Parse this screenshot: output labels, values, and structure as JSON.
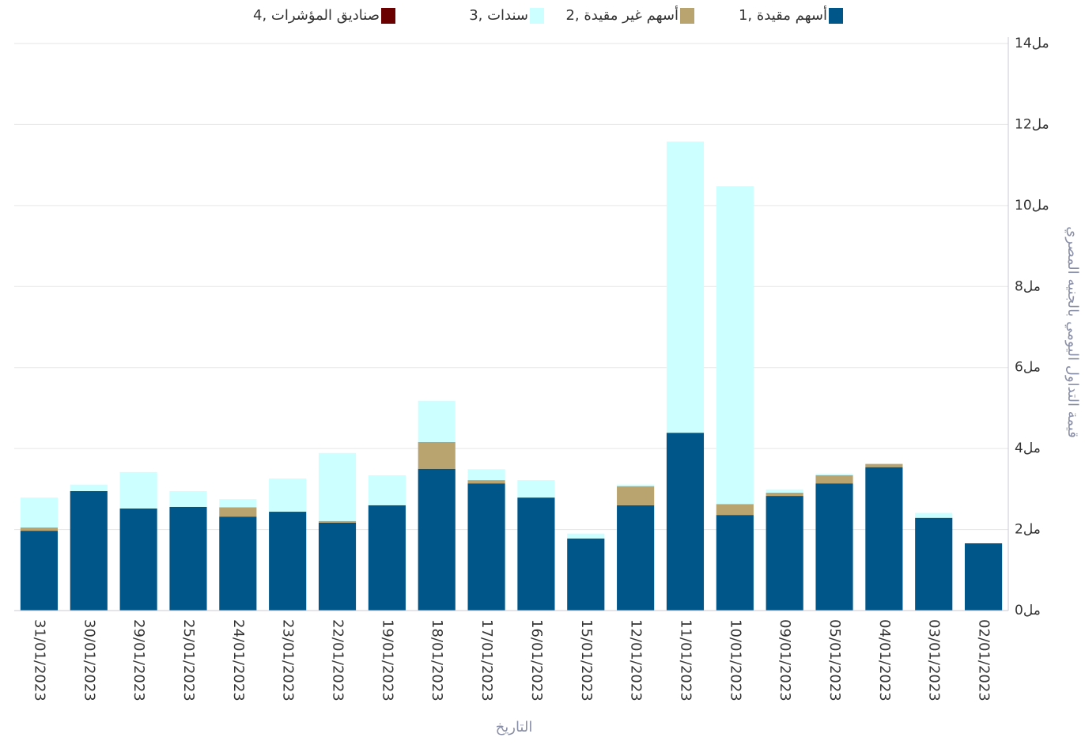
{
  "chart_data": {
    "type": "bar",
    "stacked": true,
    "x_label": "التاريخ",
    "y_label": "قيمة التداول اليومي بالجنيه المصري",
    "categories": [
      "31/01/2023",
      "30/01/2023",
      "29/01/2023",
      "25/01/2023",
      "24/01/2023",
      "23/01/2023",
      "22/01/2023",
      "19/01/2023",
      "18/01/2023",
      "17/01/2023",
      "16/01/2023",
      "15/01/2023",
      "12/01/2023",
      "11/01/2023",
      "10/01/2023",
      "09/01/2023",
      "05/01/2023",
      "04/01/2023",
      "03/01/2023",
      "02/01/2023"
    ],
    "series": [
      {
        "name": "أسهم مقيدة ,1",
        "color": "#005689",
        "values": [
          1.97,
          2.95,
          2.52,
          2.56,
          2.32,
          2.44,
          2.17,
          2.6,
          3.5,
          3.14,
          2.79,
          1.78,
          2.6,
          4.39,
          2.36,
          2.83,
          3.14,
          3.54,
          2.29,
          1.66
        ]
      },
      {
        "name": "أسهم غير مقيدة ,2",
        "color": "#b9a36e",
        "values": [
          0.08,
          0,
          0,
          0,
          0.23,
          0,
          0.04,
          0,
          0.66,
          0.08,
          0,
          0,
          0.47,
          0,
          0.27,
          0.08,
          0.2,
          0.08,
          0,
          0
        ]
      },
      {
        "name": "سندات ,3",
        "color": "#ccffff",
        "values": [
          0.74,
          0.16,
          0.9,
          0.39,
          0.2,
          0.82,
          1.68,
          0.74,
          1.02,
          0.27,
          0.43,
          0.12,
          0.04,
          7.19,
          7.85,
          0.08,
          0.04,
          0,
          0.12,
          0
        ]
      },
      {
        "name": "صناديق المؤشرات ,4",
        "color": "#6b0000",
        "values": [
          0,
          0,
          0,
          0,
          0,
          0,
          0,
          0,
          0,
          0,
          0,
          0,
          0,
          0,
          0,
          0,
          0,
          0,
          0,
          0
        ]
      }
    ],
    "ylim": [
      0,
      14
    ],
    "yticks": [
      {
        "value": 0,
        "label": "0مل"
      },
      {
        "value": 2,
        "label": "2مل"
      },
      {
        "value": 4,
        "label": "4مل"
      },
      {
        "value": 6,
        "label": "6مل"
      },
      {
        "value": 8,
        "label": "8مل"
      },
      {
        "value": 10,
        "label": "10مل"
      },
      {
        "value": 12,
        "label": "12مل"
      },
      {
        "value": 14,
        "label": "14مل"
      }
    ],
    "grid": true,
    "y_axis_side": "right",
    "legend": "top"
  }
}
